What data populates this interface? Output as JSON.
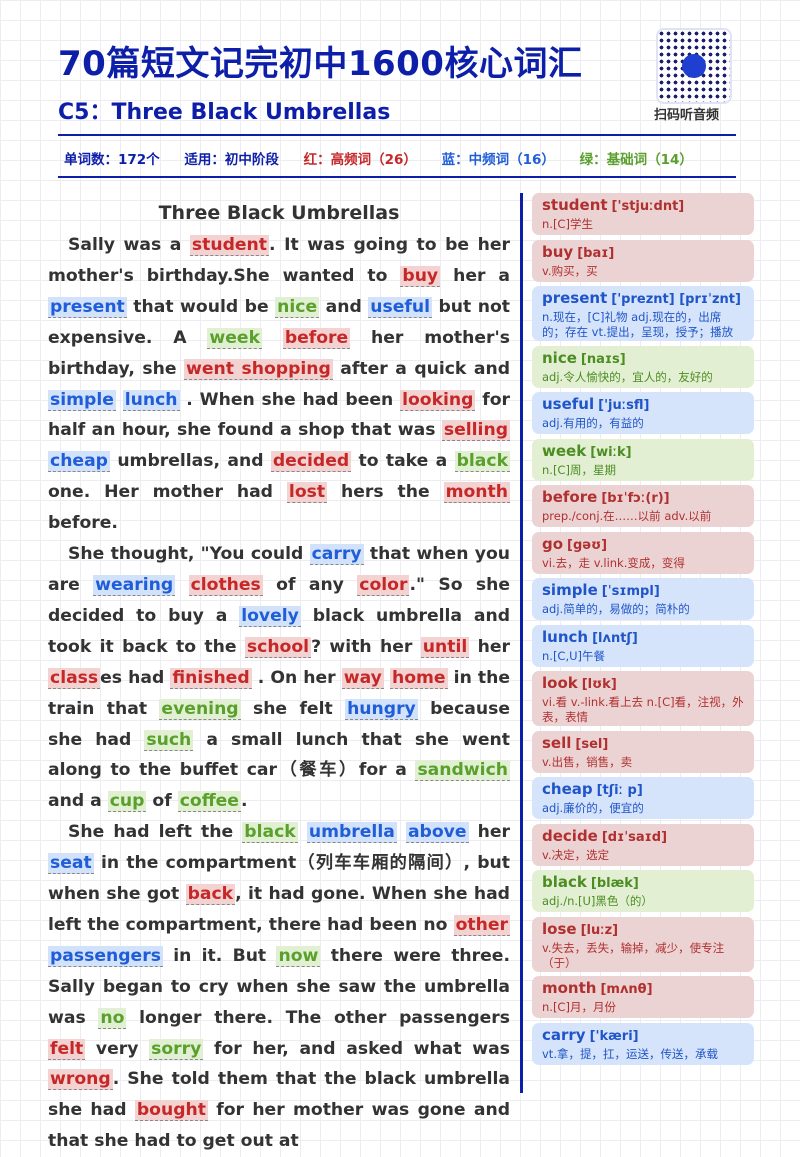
{
  "header": {
    "title": "70篇短文记完初中1600核心词汇",
    "subtitle": "C5：Three Black Umbrellas",
    "qr_label": "扫码听音频",
    "stats": {
      "word_count": "单词数：172个",
      "level": "适用：初中阶段",
      "red": "红：高频词（26）",
      "blue": "蓝：中频词（16）",
      "green": "绿：基础词（14）"
    }
  },
  "story": {
    "title": "Three Black Umbrellas",
    "paragraphs": [
      {
        "indent": true,
        "segments": [
          {
            "t": "Sally was a "
          },
          {
            "t": "student",
            "c": "red"
          },
          {
            "t": ". It was going to be her mother's birthday.She wanted to "
          },
          {
            "t": "buy",
            "c": "red"
          },
          {
            "t": " her a "
          },
          {
            "t": "present",
            "c": "blue"
          },
          {
            "t": " that would be "
          },
          {
            "t": "nice",
            "c": "green"
          },
          {
            "t": " and "
          },
          {
            "t": "useful",
            "c": "blue"
          },
          {
            "t": " but not expensive. A "
          },
          {
            "t": "week",
            "c": "green"
          },
          {
            "t": " "
          },
          {
            "t": "before",
            "c": "red"
          },
          {
            "t": " her mother's birthday, she "
          },
          {
            "t": "went shopping",
            "c": "red"
          },
          {
            "t": " after a quick and "
          },
          {
            "t": "simple",
            "c": "blue"
          },
          {
            "t": " "
          },
          {
            "t": "lunch",
            "c": "blue"
          },
          {
            "t": " . When she had been "
          },
          {
            "t": "looking",
            "c": "red"
          },
          {
            "t": " for half an hour, she found a shop that was "
          },
          {
            "t": "selling",
            "c": "red"
          },
          {
            "t": " "
          },
          {
            "t": "cheap",
            "c": "blue"
          },
          {
            "t": " umbrellas, and "
          },
          {
            "t": "decided",
            "c": "red"
          },
          {
            "t": " to take a "
          },
          {
            "t": "black",
            "c": "green"
          },
          {
            "t": " one. Her mother had "
          },
          {
            "t": "lost",
            "c": "red"
          },
          {
            "t": " hers the "
          },
          {
            "t": "month",
            "c": "red"
          },
          {
            "t": " before."
          }
        ]
      },
      {
        "indent": true,
        "segments": [
          {
            "t": "She thought, \"You could "
          },
          {
            "t": "carry",
            "c": "blue"
          },
          {
            "t": " that when you are "
          },
          {
            "t": "wearing",
            "c": "blue"
          },
          {
            "t": " "
          },
          {
            "t": "clothes",
            "c": "red"
          },
          {
            "t": " of any "
          },
          {
            "t": "color",
            "c": "red"
          },
          {
            "t": ".\" So she decided to buy a "
          },
          {
            "t": "lovely",
            "c": "blue"
          },
          {
            "t": " black umbrella and took it back to the "
          },
          {
            "t": "school",
            "c": "red"
          },
          {
            "t": "? with her "
          },
          {
            "t": "until",
            "c": "red"
          },
          {
            "t": " her "
          },
          {
            "t": "class",
            "c": "red"
          },
          {
            "t": "es had "
          },
          {
            "t": "finished",
            "c": "red"
          },
          {
            "t": " . On her "
          },
          {
            "t": "way",
            "c": "red"
          },
          {
            "t": " "
          },
          {
            "t": "home",
            "c": "red"
          },
          {
            "t": " in the train that "
          },
          {
            "t": "evening",
            "c": "green"
          },
          {
            "t": " she felt "
          },
          {
            "t": "hungry",
            "c": "blue"
          },
          {
            "t": " because she had "
          },
          {
            "t": "such",
            "c": "green"
          },
          {
            "t": " a small lunch that she went along to the buffet car（餐车）for a "
          },
          {
            "t": "sandwich",
            "c": "green"
          },
          {
            "t": " and a "
          },
          {
            "t": "cup",
            "c": "green"
          },
          {
            "t": " of "
          },
          {
            "t": "coffee",
            "c": "green"
          },
          {
            "t": "."
          }
        ]
      },
      {
        "indent": true,
        "segments": [
          {
            "t": "She had left the "
          },
          {
            "t": "black",
            "c": "green"
          },
          {
            "t": " "
          },
          {
            "t": "umbrella",
            "c": "blue"
          },
          {
            "t": " "
          },
          {
            "t": "above",
            "c": "blue"
          },
          {
            "t": " her "
          },
          {
            "t": "seat",
            "c": "blue"
          },
          {
            "t": " in the compartment（列车车厢的隔间）, but when she got "
          },
          {
            "t": "back",
            "c": "red"
          },
          {
            "t": ", it had gone. When she had left the compartment, there had been no "
          },
          {
            "t": "other",
            "c": "red"
          },
          {
            "t": " "
          },
          {
            "t": "passengers",
            "c": "blue"
          },
          {
            "t": " in it. But "
          },
          {
            "t": "now",
            "c": "green"
          },
          {
            "t": " there were three. Sally began to cry when she saw the umbrella was "
          },
          {
            "t": "no",
            "c": "green"
          },
          {
            "t": " longer there. The other passengers "
          },
          {
            "t": "felt",
            "c": "red"
          },
          {
            "t": " very "
          },
          {
            "t": "sorry",
            "c": "green"
          },
          {
            "t": " for her, and asked what was "
          },
          {
            "t": "wrong",
            "c": "red"
          },
          {
            "t": ". She told them that the black umbrella she had "
          },
          {
            "t": "bought",
            "c": "red"
          },
          {
            "t": " for her mother was gone and that she had to get out at"
          }
        ]
      }
    ]
  },
  "vocab": [
    {
      "word": "student",
      "phon": "['stjuːdnt]",
      "meaning": "n.[C]学生",
      "color": "red"
    },
    {
      "word": "buy",
      "phon": "[baɪ]",
      "meaning": "v.购买，买",
      "color": "red"
    },
    {
      "word": "present",
      "phon": "['preznt] [prɪˈznt]",
      "meaning": "n.现在，[C]礼物 adj.现在的，出席的；存在 vt.提出，呈现，授予；播放",
      "color": "blue",
      "tall": true
    },
    {
      "word": "nice",
      "phon": "[naɪs]",
      "meaning": "adj.令人愉快的，宜人的，友好的",
      "color": "green"
    },
    {
      "word": "useful",
      "phon": "['juːsfl]",
      "meaning": "adj.有用的，有益的",
      "color": "blue"
    },
    {
      "word": "week",
      "phon": "[wiːk]",
      "meaning": "n.[C]周，星期",
      "color": "green"
    },
    {
      "word": "before",
      "phon": "[bɪˈfɔː(r)]",
      "meaning": "prep./conj.在……以前 adv.以前",
      "color": "red"
    },
    {
      "word": "go",
      "phon": "[gəʊ]",
      "meaning": "vi.去，走 v.link.变成，变得",
      "color": "red"
    },
    {
      "word": "simple",
      "phon": "[ˈsɪmpl]",
      "meaning": "adj.简单的，易做的；简朴的",
      "color": "blue"
    },
    {
      "word": "lunch",
      "phon": "[lʌntʃ]",
      "meaning": "n.[C,U]午餐",
      "color": "blue"
    },
    {
      "word": "look",
      "phon": "[lʊk]",
      "meaning": "vi.看 v.-link.看上去 n.[C]看，注视，外表，表情",
      "color": "red",
      "tall": true
    },
    {
      "word": "sell",
      "phon": "[sel]",
      "meaning": "v.出售，销售，卖",
      "color": "red"
    },
    {
      "word": "cheap",
      "phon": "[tʃiː p]",
      "meaning": "adj.廉价的，便宜的",
      "color": "blue"
    },
    {
      "word": "decide",
      "phon": "[dɪˈsaɪd]",
      "meaning": "v.决定，选定",
      "color": "red"
    },
    {
      "word": "black",
      "phon": "[blæk]",
      "meaning": "adj./n.[U]黑色（的）",
      "color": "green"
    },
    {
      "word": "lose",
      "phon": "[luːz]",
      "meaning": "v.失去，丢失，输掉，减少，使专注（于）",
      "color": "red",
      "tall": true
    },
    {
      "word": "month",
      "phon": "[mʌnθ]",
      "meaning": "n.[C]月，月份",
      "color": "red"
    },
    {
      "word": "carry",
      "phon": "['kæri]",
      "meaning": "vt.拿，提，扛，运送，传送，承载",
      "color": "blue"
    }
  ]
}
